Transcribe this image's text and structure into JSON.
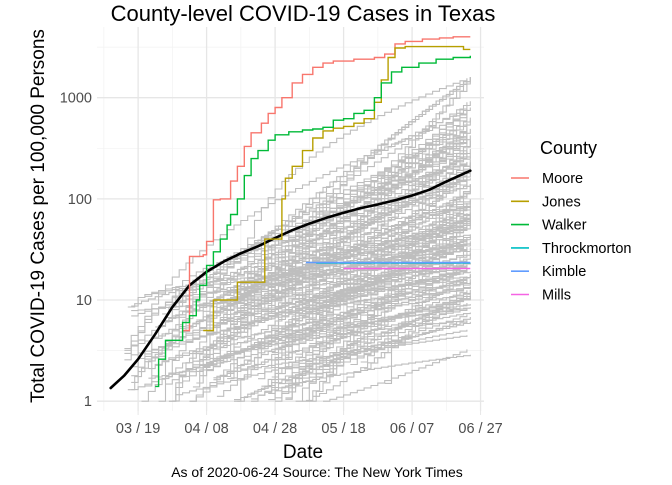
{
  "chart_data": {
    "type": "line",
    "title": "County-level COVID-19 Cases in Texas",
    "xlabel": "Date",
    "ylabel": "Total COVID-19 Cases per 100,000 Persons",
    "caption": "As of 2020-06-24 Source: The New York Times",
    "y_scale": "log10",
    "xlim": [
      "2020-03-07",
      "2020-06-28"
    ],
    "ylim": [
      0.8,
      5000
    ],
    "grid": true,
    "legend_position": "right",
    "legend_title": "County",
    "x_ticks": [
      {
        "date": "2020-03-19",
        "label": "03 / 19"
      },
      {
        "date": "2020-04-08",
        "label": "04 / 08"
      },
      {
        "date": "2020-04-28",
        "label": "04 / 28"
      },
      {
        "date": "2020-05-18",
        "label": "05 / 18"
      },
      {
        "date": "2020-06-07",
        "label": "06 / 07"
      },
      {
        "date": "2020-06-27",
        "label": "06 / 27"
      }
    ],
    "y_ticks": [
      {
        "value": 1,
        "label": "1"
      },
      {
        "value": 10,
        "label": "10"
      },
      {
        "value": 100,
        "label": "100"
      },
      {
        "value": 1000,
        "label": "1000"
      }
    ],
    "background_series": {
      "color": "#bebebe",
      "description_count": 160
    },
    "trend": {
      "color": "#000000",
      "points": [
        [
          "2020-03-11",
          1.35
        ],
        [
          "2020-03-15",
          1.8
        ],
        [
          "2020-03-19",
          2.6
        ],
        [
          "2020-03-24",
          4.6
        ],
        [
          "2020-03-29",
          8.5
        ],
        [
          "2020-04-03",
          14
        ],
        [
          "2020-04-08",
          19
        ],
        [
          "2020-04-13",
          24
        ],
        [
          "2020-04-18",
          29
        ],
        [
          "2020-04-23",
          34
        ],
        [
          "2020-04-28",
          41
        ],
        [
          "2020-05-03",
          49
        ],
        [
          "2020-05-08",
          57
        ],
        [
          "2020-05-13",
          65
        ],
        [
          "2020-05-18",
          73
        ],
        [
          "2020-05-23",
          81
        ],
        [
          "2020-05-28",
          88
        ],
        [
          "2020-06-02",
          97
        ],
        [
          "2020-06-07",
          108
        ],
        [
          "2020-06-12",
          123
        ],
        [
          "2020-06-17",
          148
        ],
        [
          "2020-06-24",
          190
        ]
      ]
    },
    "series": [
      {
        "name": "Moore",
        "color": "#F8766D",
        "points": [
          [
            "2020-04-01",
            5
          ],
          [
            "2020-04-03",
            27
          ],
          [
            "2020-04-05",
            27
          ],
          [
            "2020-04-07",
            28
          ],
          [
            "2020-04-08",
            38
          ],
          [
            "2020-04-10",
            98
          ],
          [
            "2020-04-12",
            100
          ],
          [
            "2020-04-15",
            150
          ],
          [
            "2020-04-17",
            210
          ],
          [
            "2020-04-19",
            330
          ],
          [
            "2020-04-21",
            450
          ],
          [
            "2020-04-24",
            560
          ],
          [
            "2020-04-26",
            700
          ],
          [
            "2020-04-28",
            800
          ],
          [
            "2020-04-30",
            1000
          ],
          [
            "2020-05-03",
            1400
          ],
          [
            "2020-05-06",
            1700
          ],
          [
            "2020-05-09",
            2000
          ],
          [
            "2020-05-12",
            2200
          ],
          [
            "2020-05-15",
            2300
          ],
          [
            "2020-05-18",
            2300
          ],
          [
            "2020-05-21",
            2400
          ],
          [
            "2020-05-24",
            2400
          ],
          [
            "2020-05-27",
            2500
          ],
          [
            "2020-05-30",
            2700
          ],
          [
            "2020-06-02",
            3400
          ],
          [
            "2020-06-05",
            3600
          ],
          [
            "2020-06-10",
            3800
          ],
          [
            "2020-06-15",
            3900
          ],
          [
            "2020-06-19",
            4000
          ],
          [
            "2020-06-24",
            4000
          ]
        ]
      },
      {
        "name": "Jones",
        "color": "#B79F00",
        "points": [
          [
            "2020-04-07",
            5
          ],
          [
            "2020-04-09",
            5
          ],
          [
            "2020-04-10",
            10
          ],
          [
            "2020-04-16",
            10
          ],
          [
            "2020-04-17",
            15
          ],
          [
            "2020-04-24",
            15
          ],
          [
            "2020-04-25",
            40
          ],
          [
            "2020-04-28",
            40
          ],
          [
            "2020-04-30",
            100
          ],
          [
            "2020-05-01",
            160
          ],
          [
            "2020-05-03",
            210
          ],
          [
            "2020-05-06",
            300
          ],
          [
            "2020-05-09",
            400
          ],
          [
            "2020-05-12",
            470
          ],
          [
            "2020-05-15",
            500
          ],
          [
            "2020-05-18",
            520
          ],
          [
            "2020-05-21",
            560
          ],
          [
            "2020-05-24",
            620
          ],
          [
            "2020-05-27",
            900
          ],
          [
            "2020-05-29",
            1500
          ],
          [
            "2020-05-31",
            2500
          ],
          [
            "2020-06-02",
            3100
          ],
          [
            "2020-06-05",
            3200
          ],
          [
            "2020-06-10",
            3200
          ],
          [
            "2020-06-18",
            3200
          ],
          [
            "2020-06-22",
            3000
          ],
          [
            "2020-06-24",
            3000
          ]
        ]
      },
      {
        "name": "Walker",
        "color": "#00BA38",
        "points": [
          [
            "2020-03-24",
            1.4
          ],
          [
            "2020-03-25",
            2.6
          ],
          [
            "2020-03-26",
            2.6
          ],
          [
            "2020-03-27",
            4
          ],
          [
            "2020-03-31",
            4
          ],
          [
            "2020-04-01",
            6
          ],
          [
            "2020-04-03",
            7
          ],
          [
            "2020-04-05",
            10
          ],
          [
            "2020-04-06",
            14
          ],
          [
            "2020-04-08",
            22
          ],
          [
            "2020-04-10",
            30
          ],
          [
            "2020-04-12",
            40
          ],
          [
            "2020-04-14",
            55
          ],
          [
            "2020-04-15",
            70
          ],
          [
            "2020-04-17",
            100
          ],
          [
            "2020-04-19",
            170
          ],
          [
            "2020-04-21",
            250
          ],
          [
            "2020-04-23",
            300
          ],
          [
            "2020-04-26",
            380
          ],
          [
            "2020-04-28",
            430
          ],
          [
            "2020-05-02",
            460
          ],
          [
            "2020-05-06",
            480
          ],
          [
            "2020-05-09",
            490
          ],
          [
            "2020-05-12",
            510
          ],
          [
            "2020-05-15",
            600
          ],
          [
            "2020-05-18",
            620
          ],
          [
            "2020-05-21",
            700
          ],
          [
            "2020-05-24",
            750
          ],
          [
            "2020-05-27",
            1000
          ],
          [
            "2020-05-29",
            1400
          ],
          [
            "2020-06-01",
            1800
          ],
          [
            "2020-06-04",
            2000
          ],
          [
            "2020-06-09",
            2200
          ],
          [
            "2020-06-14",
            2400
          ],
          [
            "2020-06-19",
            2500
          ],
          [
            "2020-06-24",
            2600
          ]
        ]
      },
      {
        "name": "Throckmorton",
        "color": "#00BFC4",
        "points": [
          [
            "2020-05-10",
            23.2
          ],
          [
            "2020-06-24",
            23.2
          ]
        ]
      },
      {
        "name": "Kimble",
        "color": "#619CFF",
        "points": [
          [
            "2020-05-07",
            23.5
          ],
          [
            "2020-06-24",
            23.5
          ]
        ]
      },
      {
        "name": "Mills",
        "color": "#F564E3",
        "points": [
          [
            "2020-05-18",
            20.5
          ],
          [
            "2020-06-24",
            20.5
          ]
        ]
      }
    ]
  }
}
